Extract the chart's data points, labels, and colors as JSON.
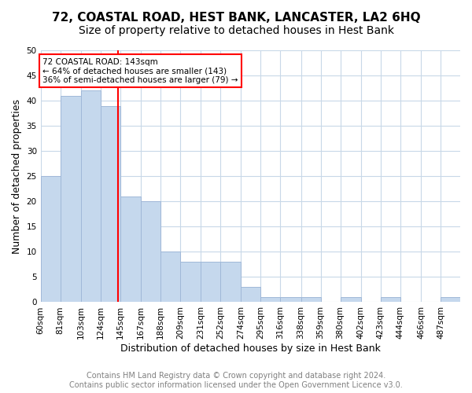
{
  "title": "72, COASTAL ROAD, HEST BANK, LANCASTER, LA2 6HQ",
  "subtitle": "Size of property relative to detached houses in Hest Bank",
  "xlabel": "Distribution of detached houses by size in Hest Bank",
  "ylabel": "Number of detached properties",
  "bar_color": "#c5d8ed",
  "bar_edgecolor": "#a0b8d8",
  "grid_color": "#c8d8e8",
  "annotation_line_color": "red",
  "annotation_text_line1": "72 COASTAL ROAD: 143sqm",
  "annotation_text_line2": "← 64% of detached houses are smaller (143)",
  "annotation_text_line3": "36% of semi-detached houses are larger (79) →",
  "property_size": 143,
  "bin_edges": [
    60,
    81,
    103,
    124,
    145,
    167,
    188,
    209,
    231,
    252,
    274,
    295,
    316,
    338,
    359,
    380,
    402,
    423,
    444,
    466,
    487,
    508
  ],
  "bar_heights": [
    25,
    41,
    42,
    39,
    21,
    20,
    10,
    8,
    8,
    8,
    3,
    1,
    1,
    1,
    0,
    1,
    0,
    1,
    0,
    0,
    1
  ],
  "bin_labels": [
    "60sqm",
    "81sqm",
    "103sqm",
    "124sqm",
    "145sqm",
    "167sqm",
    "188sqm",
    "209sqm",
    "231sqm",
    "252sqm",
    "274sqm",
    "295sqm",
    "316sqm",
    "338sqm",
    "359sqm",
    "380sqm",
    "402sqm",
    "423sqm",
    "444sqm",
    "466sqm",
    "487sqm"
  ],
  "ylim": [
    0,
    50
  ],
  "yticks": [
    0,
    5,
    10,
    15,
    20,
    25,
    30,
    35,
    40,
    45,
    50
  ],
  "footer_line1": "Contains HM Land Registry data © Crown copyright and database right 2024.",
  "footer_line2": "Contains public sector information licensed under the Open Government Licence v3.0.",
  "title_fontsize": 11,
  "subtitle_fontsize": 10,
  "axis_label_fontsize": 9,
  "tick_fontsize": 7.5,
  "footer_fontsize": 7
}
